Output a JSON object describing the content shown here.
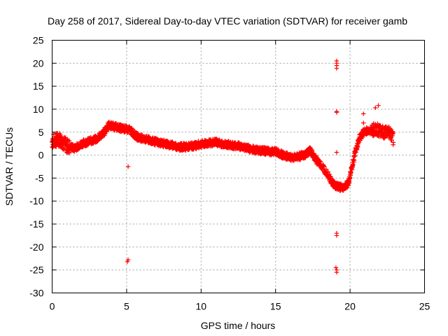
{
  "chart_data": {
    "type": "scatter",
    "title": "Day 258 of 2017, Sidereal Day-to-day VTEC variation (SDTVAR) for receiver gamb",
    "xlabel": "GPS time / hours",
    "ylabel": "SDTVAR / TECUs",
    "xlim": [
      0,
      25
    ],
    "ylim": [
      -30,
      25
    ],
    "xticks": [
      0,
      5,
      10,
      15,
      20,
      25
    ],
    "yticks": [
      -30,
      -25,
      -20,
      -15,
      -10,
      -5,
      0,
      5,
      10,
      15,
      20,
      25
    ],
    "x_tick_labels": [
      "0",
      "5",
      "10",
      "15",
      "20",
      "25"
    ],
    "y_tick_labels": [
      "-30",
      "-25",
      "-20",
      "-15",
      "-10",
      "-5",
      "0",
      "5",
      "10",
      "15",
      "20",
      "25"
    ],
    "grid": true,
    "marker": "+",
    "series": [
      {
        "name": "SDTVAR",
        "color": "#ff0000",
        "trend": {
          "x": [
            0.0,
            0.5,
            1.0,
            1.5,
            2.0,
            2.5,
            3.0,
            3.5,
            3.8,
            4.2,
            4.7,
            5.2,
            5.7,
            6.2,
            6.8,
            7.5,
            8.0,
            8.5,
            9.0,
            9.5,
            10.0,
            10.5,
            11.0,
            11.5,
            12.0,
            12.5,
            13.0,
            13.5,
            14.0,
            14.5,
            15.0,
            15.5,
            16.0,
            16.5,
            17.0,
            17.3,
            17.6,
            18.0,
            18.5,
            18.8,
            19.0,
            19.3,
            19.6,
            19.9,
            20.1,
            20.3,
            20.6,
            20.9,
            21.2,
            21.5,
            21.8,
            22.0,
            22.3,
            22.6,
            22.9
          ],
          "y": [
            3.0,
            3.5,
            2.0,
            1.5,
            2.5,
            3.0,
            3.5,
            5.0,
            6.5,
            6.2,
            5.8,
            5.5,
            4.0,
            3.5,
            3.0,
            2.5,
            2.2,
            1.8,
            1.8,
            2.0,
            2.4,
            2.6,
            2.8,
            2.4,
            2.2,
            2.0,
            1.6,
            1.2,
            1.0,
            0.8,
            0.8,
            0.0,
            -0.5,
            -0.3,
            0.0,
            1.0,
            -0.5,
            -2.0,
            -4.0,
            -6.0,
            -6.5,
            -7.0,
            -7.0,
            -6.0,
            -3.0,
            0.0,
            3.5,
            5.0,
            5.3,
            5.5,
            5.5,
            5.2,
            5.0,
            5.0,
            3.5
          ]
        },
        "band_spread": 0.8,
        "outliers": [
          {
            "x": 5.1,
            "y": -2.5
          },
          {
            "x": 5.1,
            "y": -22.8
          },
          {
            "x": 5.05,
            "y": -23.2
          },
          {
            "x": 19.1,
            "y": 20.5
          },
          {
            "x": 19.1,
            "y": 20.0
          },
          {
            "x": 19.1,
            "y": 19.5
          },
          {
            "x": 19.1,
            "y": 18.9
          },
          {
            "x": 19.1,
            "y": 9.5
          },
          {
            "x": 19.1,
            "y": 9.3
          },
          {
            "x": 19.1,
            "y": 0.6
          },
          {
            "x": 19.1,
            "y": -17.0
          },
          {
            "x": 19.1,
            "y": -17.5
          },
          {
            "x": 19.05,
            "y": -24.5
          },
          {
            "x": 19.1,
            "y": -25.0
          },
          {
            "x": 19.1,
            "y": -25.5
          },
          {
            "x": 20.9,
            "y": 9.0
          },
          {
            "x": 20.9,
            "y": 7.0
          },
          {
            "x": 21.7,
            "y": 10.3
          },
          {
            "x": 21.9,
            "y": 10.8
          }
        ]
      }
    ]
  }
}
